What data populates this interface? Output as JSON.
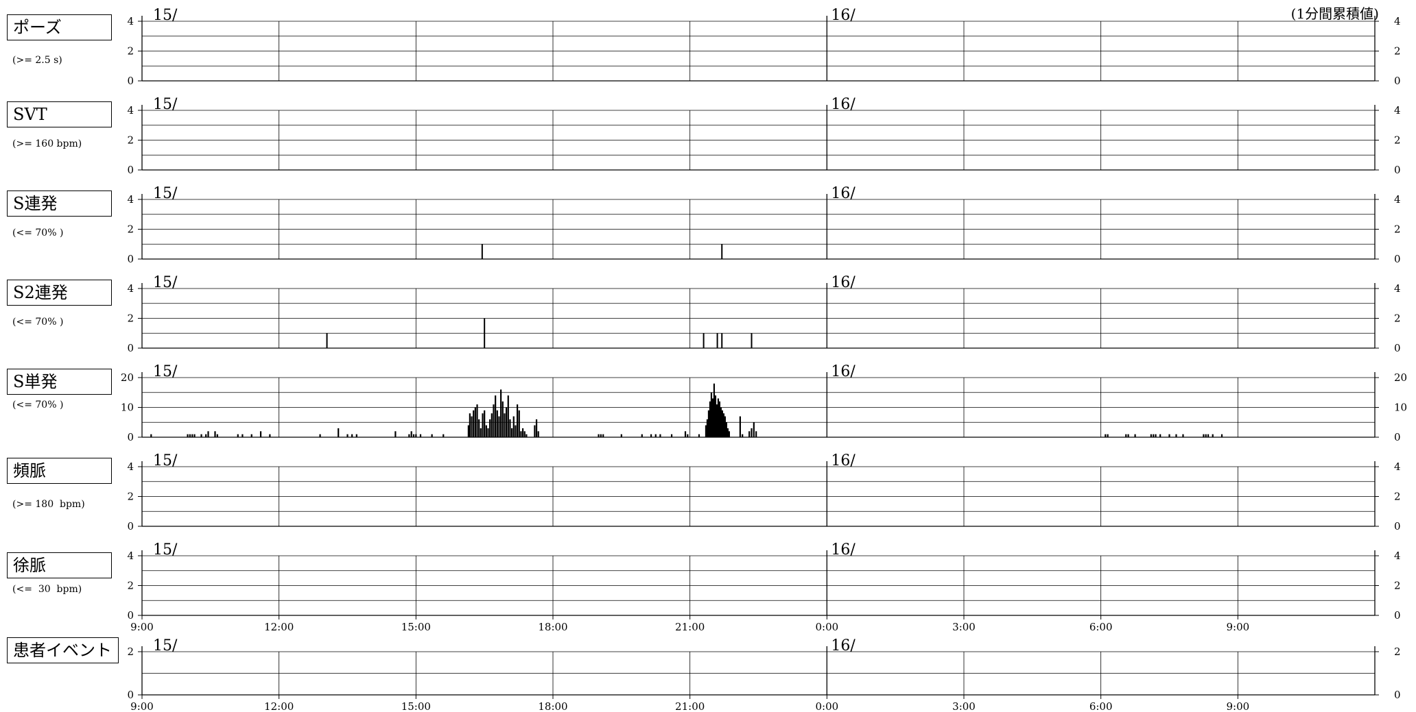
{
  "note": "(1分間累積値)",
  "chart_data": {
    "type": "bar",
    "x_axis": {
      "ticks": [
        "9:00",
        "12:00",
        "15:00",
        "18:00",
        "21:00",
        "0:00",
        "3:00",
        "6:00",
        "9:00"
      ],
      "day_labels": [
        "15/",
        "16/"
      ]
    },
    "panels": [
      {
        "label": "ポーズ",
        "criterion": "(>= 2.5 s)",
        "ymax": 4,
        "yticks": [
          0,
          2,
          4
        ],
        "bars": []
      },
      {
        "label": "SVT",
        "criterion": "(>= 160 bpm)",
        "ymax": 4,
        "yticks": [
          0,
          2,
          4
        ],
        "bars": []
      },
      {
        "label": "S連発",
        "criterion": "(<= 70% )",
        "ymax": 4,
        "yticks": [
          0,
          2,
          4
        ],
        "bars": [
          [
            16.45,
            1
          ],
          [
            21.7,
            1
          ]
        ]
      },
      {
        "label": "S2連発",
        "criterion": "(<= 70% )",
        "ymax": 4,
        "yticks": [
          0,
          2,
          4
        ],
        "bars": [
          [
            13.05,
            1
          ],
          [
            16.5,
            2
          ],
          [
            21.3,
            1
          ],
          [
            21.6,
            1
          ],
          [
            21.7,
            1
          ],
          [
            22.35,
            1
          ]
        ]
      },
      {
        "label": "S単発",
        "criterion": "(<= 70% )",
        "ymax": 20,
        "yticks": [
          0,
          10,
          20
        ],
        "bars": [
          [
            9.2,
            1
          ],
          [
            10.0,
            1
          ],
          [
            10.05,
            1
          ],
          [
            10.1,
            1
          ],
          [
            10.15,
            1
          ],
          [
            10.3,
            1
          ],
          [
            10.4,
            1
          ],
          [
            10.45,
            2
          ],
          [
            10.6,
            2
          ],
          [
            10.65,
            1
          ],
          [
            11.1,
            1
          ],
          [
            11.2,
            1
          ],
          [
            11.4,
            1
          ],
          [
            11.6,
            2
          ],
          [
            11.8,
            1
          ],
          [
            12.9,
            1
          ],
          [
            13.3,
            3
          ],
          [
            13.5,
            1
          ],
          [
            13.6,
            1
          ],
          [
            13.7,
            1
          ],
          [
            14.55,
            2
          ],
          [
            14.85,
            1
          ],
          [
            14.9,
            2
          ],
          [
            14.95,
            1
          ],
          [
            15.0,
            1
          ],
          [
            15.1,
            1
          ],
          [
            15.35,
            1
          ],
          [
            15.6,
            1
          ],
          [
            16.15,
            4
          ],
          [
            16.18,
            8
          ],
          [
            16.22,
            7
          ],
          [
            16.26,
            9
          ],
          [
            16.3,
            10
          ],
          [
            16.34,
            11
          ],
          [
            16.38,
            6
          ],
          [
            16.42,
            3
          ],
          [
            16.46,
            8
          ],
          [
            16.5,
            9
          ],
          [
            16.54,
            4
          ],
          [
            16.58,
            3
          ],
          [
            16.62,
            6
          ],
          [
            16.66,
            8
          ],
          [
            16.7,
            11
          ],
          [
            16.74,
            14
          ],
          [
            16.78,
            9
          ],
          [
            16.82,
            7
          ],
          [
            16.86,
            16
          ],
          [
            16.9,
            12
          ],
          [
            16.94,
            8
          ],
          [
            16.98,
            10
          ],
          [
            17.02,
            14
          ],
          [
            17.06,
            6
          ],
          [
            17.1,
            3
          ],
          [
            17.14,
            7
          ],
          [
            17.18,
            4
          ],
          [
            17.22,
            11
          ],
          [
            17.26,
            9
          ],
          [
            17.3,
            2
          ],
          [
            17.34,
            3
          ],
          [
            17.38,
            2
          ],
          [
            17.42,
            1
          ],
          [
            17.6,
            4
          ],
          [
            17.64,
            6
          ],
          [
            17.68,
            2
          ],
          [
            19.0,
            1
          ],
          [
            19.05,
            1
          ],
          [
            19.1,
            1
          ],
          [
            19.5,
            1
          ],
          [
            19.95,
            1
          ],
          [
            20.15,
            1
          ],
          [
            20.25,
            1
          ],
          [
            20.35,
            1
          ],
          [
            20.6,
            1
          ],
          [
            20.9,
            2
          ],
          [
            20.95,
            1
          ],
          [
            21.2,
            1
          ],
          [
            21.35,
            4
          ],
          [
            21.38,
            6
          ],
          [
            21.41,
            9
          ],
          [
            21.44,
            12
          ],
          [
            21.47,
            15
          ],
          [
            21.5,
            13
          ],
          [
            21.53,
            18
          ],
          [
            21.56,
            14
          ],
          [
            21.59,
            11
          ],
          [
            21.62,
            13
          ],
          [
            21.65,
            12
          ],
          [
            21.68,
            10
          ],
          [
            21.71,
            9
          ],
          [
            21.74,
            8
          ],
          [
            21.77,
            7
          ],
          [
            21.8,
            5
          ],
          [
            21.83,
            3
          ],
          [
            21.86,
            2
          ],
          [
            22.1,
            7
          ],
          [
            22.15,
            1
          ],
          [
            22.3,
            2
          ],
          [
            22.35,
            3
          ],
          [
            22.4,
            5
          ],
          [
            22.45,
            2
          ],
          [
            30.1,
            1
          ],
          [
            30.15,
            1
          ],
          [
            30.55,
            1
          ],
          [
            30.6,
            1
          ],
          [
            30.75,
            1
          ],
          [
            31.1,
            1
          ],
          [
            31.15,
            1
          ],
          [
            31.2,
            1
          ],
          [
            31.3,
            1
          ],
          [
            31.5,
            1
          ],
          [
            31.65,
            1
          ],
          [
            31.8,
            1
          ],
          [
            32.25,
            1
          ],
          [
            32.3,
            1
          ],
          [
            32.35,
            1
          ],
          [
            32.45,
            1
          ],
          [
            32.65,
            1
          ]
        ]
      },
      {
        "label": "頻脈",
        "criterion": "(>= 180  bpm)",
        "ymax": 4,
        "yticks": [
          0,
          2,
          4
        ],
        "bars": []
      },
      {
        "label": "徐脈",
        "criterion": "(<=  30  bpm)",
        "ymax": 4,
        "yticks": [
          0,
          2,
          4
        ],
        "bars": []
      },
      {
        "label": "患者イベント",
        "criterion": "",
        "ymax": 2,
        "yticks": [
          0,
          2
        ],
        "bars": []
      }
    ]
  }
}
